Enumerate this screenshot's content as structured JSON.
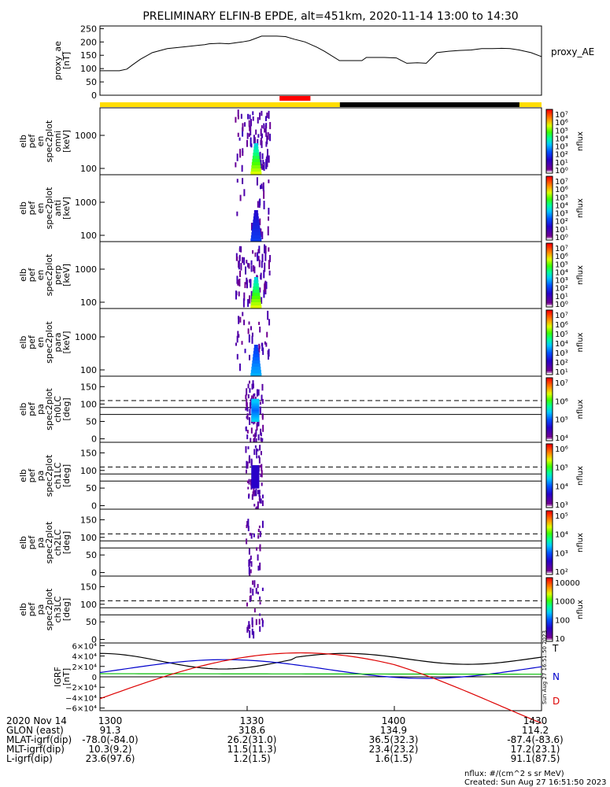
{
  "title": "PRELIMINARY ELFIN-B EPDE, alt=451km, 2020-11-14 13:00 to 14:30",
  "colors": {
    "bar_yellow": "#ffdd00",
    "bar_black": "#000000",
    "bar_red": "#ff0000",
    "igrf_black": "#000000",
    "igrf_blue": "#0000cc",
    "igrf_green": "#00bb00",
    "igrf_red": "#dd0000"
  },
  "chart_data": [
    {
      "id": "proxy_ae",
      "type": "line",
      "ylabel": [
        "proxy_ae",
        "[nT]"
      ],
      "series_label": "proxy_AE",
      "ylim": [
        0,
        260
      ],
      "yticks": [
        "250",
        "200",
        "150",
        "100",
        "50",
        "0"
      ],
      "ytick_values": [
        250,
        200,
        150,
        100,
        50,
        0
      ],
      "x_minutes": [
        0,
        8,
        13,
        18,
        22,
        27,
        35,
        45,
        57,
        70,
        73,
        80,
        86,
        92,
        95,
        100,
        108,
        118,
        124,
        130,
        137,
        145,
        150,
        160,
        168,
        175,
        178,
        190,
        198,
        205,
        212,
        218,
        225,
        233,
        240,
        248,
        255,
        262,
        268,
        274,
        280,
        288,
        295
      ],
      "values": [
        92,
        92,
        92,
        98,
        115,
        135,
        160,
        175,
        182,
        190,
        193,
        195,
        193,
        198,
        200,
        205,
        222,
        222,
        220,
        210,
        200,
        180,
        165,
        130,
        130,
        130,
        142,
        142,
        140,
        120,
        122,
        120,
        160,
        165,
        168,
        170,
        175,
        175,
        176,
        175,
        170,
        160,
        145
      ]
    },
    {
      "id": "bars",
      "segments": [
        {
          "color": "bar_yellow",
          "from": 0,
          "to": 163
        },
        {
          "color": "bar_black",
          "from": 163,
          "to": 285
        },
        {
          "color": "bar_yellow",
          "from": 285,
          "to": 300
        }
      ],
      "marker": {
        "color": "bar_red",
        "from": 122,
        "to": 143
      }
    },
    {
      "id": "en_omni",
      "type": "heatmap",
      "ylabel": [
        "elb",
        "pef",
        "en",
        "spec2plot",
        "omni",
        "[keV]"
      ],
      "yticks": [
        "1000",
        "100"
      ],
      "cbar_label": "nflux",
      "cbar_ticks": [
        "10⁷",
        "10⁶",
        "10⁵",
        "10⁴",
        "10³",
        "10²",
        "10¹",
        "10⁰"
      ]
    },
    {
      "id": "en_anti",
      "type": "heatmap",
      "ylabel": [
        "elb",
        "pef",
        "en",
        "spec2plot",
        "anti",
        "[keV]"
      ],
      "yticks": [
        "1000",
        "100"
      ],
      "cbar_label": "nflux",
      "cbar_ticks": [
        "10⁷",
        "10⁶",
        "10⁵",
        "10⁴",
        "10³",
        "10²",
        "10¹",
        "10⁰"
      ]
    },
    {
      "id": "en_perp",
      "type": "heatmap",
      "ylabel": [
        "elb",
        "pef",
        "en",
        "spec2plot",
        "perp",
        "[keV]"
      ],
      "yticks": [
        "1000",
        "100"
      ],
      "cbar_label": "nflux",
      "cbar_ticks": [
        "10⁷",
        "10⁶",
        "10⁵",
        "10⁴",
        "10³",
        "10²",
        "10¹",
        "10⁰"
      ]
    },
    {
      "id": "en_para",
      "type": "heatmap",
      "ylabel": [
        "elb",
        "pef",
        "en",
        "spec2plot",
        "para",
        "[keV]"
      ],
      "yticks": [
        "1000",
        "100"
      ],
      "cbar_label": "nflux",
      "cbar_ticks": [
        "10⁷",
        "10⁶",
        "10⁵",
        "10⁴",
        "10³",
        "10²",
        "10¹"
      ]
    },
    {
      "id": "pa_ch0",
      "type": "heatmap",
      "ylabel": [
        "elb",
        "pef",
        "pa",
        "spec2plot",
        "ch0LC",
        "[deg]"
      ],
      "yticks": [
        "150",
        "100",
        "50",
        "0"
      ],
      "cbar_label": "nflux",
      "cbar_ticks": [
        "10⁷",
        "10⁶",
        "10⁵",
        "10⁴"
      ]
    },
    {
      "id": "pa_ch1",
      "type": "heatmap",
      "ylabel": [
        "elb",
        "pef",
        "pa",
        "spec2plot",
        "ch1LC",
        "[deg]"
      ],
      "yticks": [
        "150",
        "100",
        "50",
        "0"
      ],
      "cbar_label": "nflux",
      "cbar_ticks": [
        "10⁶",
        "10⁵",
        "10⁴",
        "10³"
      ]
    },
    {
      "id": "pa_ch2",
      "type": "heatmap",
      "ylabel": [
        "elb",
        "pef",
        "pa",
        "spec2plot",
        "ch2LC",
        "[deg]"
      ],
      "yticks": [
        "150",
        "100",
        "50",
        "0"
      ],
      "cbar_label": "nflux",
      "cbar_ticks": [
        "10⁵",
        "10⁴",
        "10³",
        "10²"
      ]
    },
    {
      "id": "pa_ch3",
      "type": "heatmap",
      "ylabel": [
        "elb",
        "pef",
        "pa",
        "spec2plot",
        "ch3LC",
        "[deg]"
      ],
      "yticks": [
        "150",
        "100",
        "50",
        "0"
      ],
      "cbar_label": "nflux",
      "cbar_ticks": [
        "10000",
        "1000",
        "100",
        "10"
      ]
    },
    {
      "id": "igrf",
      "type": "line",
      "ylabel": [
        "IGRF",
        "[nT]"
      ],
      "yticks": [
        "6×10⁴",
        "4×10⁴",
        "2×10⁴",
        "0",
        "−2×10⁴",
        "−4×10⁴",
        "−6×10⁴"
      ],
      "legend": [
        "T",
        "N",
        "D"
      ],
      "side_text": "Sun Aug 27 16:51:50 2023"
    }
  ],
  "x_axis": {
    "ticks": [
      "1300",
      "1330",
      "1400",
      "1430"
    ],
    "rows": [
      {
        "label": "2020 Nov 14",
        "values": [
          "1300",
          "1330",
          "1400",
          "1430"
        ]
      },
      {
        "label": "GLON (east)",
        "values": [
          "91.3",
          "318.6",
          "134.9",
          "114.2"
        ]
      },
      {
        "label": "MLAT-igrf(dip)",
        "values": [
          "-78.0(-84.0)",
          "26.2(31.0)",
          "36.5(32.3)",
          "-87.4(-83.6)"
        ]
      },
      {
        "label": "MLT-igrf(dip)",
        "values": [
          "10.3(9.2)",
          "11.5(11.3)",
          "23.4(23.2)",
          "17.2(23.1)"
        ]
      },
      {
        "label": "L-igrf(dip)",
        "values": [
          "23.6(97.6)",
          "1.2(1.5)",
          "1.6(1.5)",
          "91.1(87.5)"
        ]
      }
    ]
  },
  "footer": {
    "units": "nflux: #/(cm^2 s sr MeV)",
    "created": "Created: Sun Aug 27 16:51:50 2023"
  }
}
